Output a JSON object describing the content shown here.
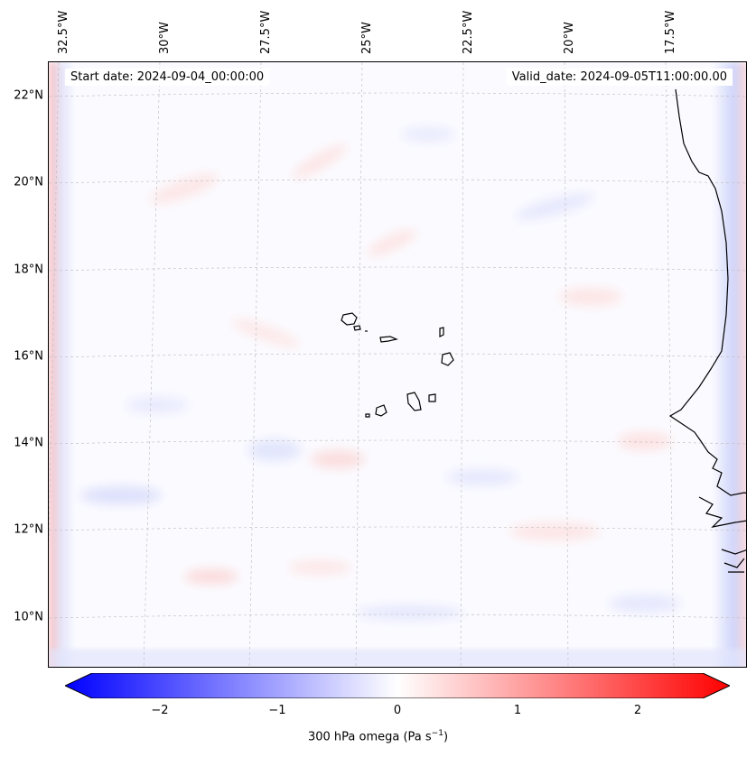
{
  "map": {
    "start_date": "Start date: 2024-09-04_00:00:00",
    "valid_date": "Valid_date: 2024-09-05T11:00:00.00",
    "longitude_labels": [
      "32.5°W",
      "30°W",
      "27.5°W",
      "25°W",
      "22.5°W",
      "20°W",
      "17.5°W"
    ],
    "latitude_labels": [
      "22°N",
      "20°N",
      "18°N",
      "16°N",
      "14°N",
      "12°N",
      "10°N"
    ],
    "colorbar": {
      "ticks": [
        "−2",
        "−1",
        "0",
        "1",
        "2"
      ],
      "label": "300 hPa omega (Pa s",
      "label_exponent": "−1",
      "label_close": ")",
      "min_color": "#0000ff",
      "mid_color": "#ffffff",
      "max_color": "#ff0000"
    }
  }
}
